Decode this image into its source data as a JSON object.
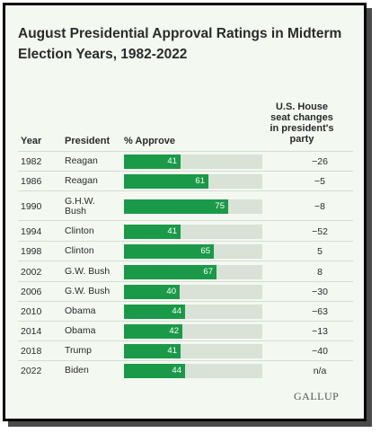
{
  "chart_data": {
    "type": "table",
    "title": "August Presidential Approval Ratings in Midterm Election Years, 1982-2022",
    "columns": [
      "Year",
      "President",
      "% Approve",
      "U.S. House seat changes in president's party"
    ],
    "max_value": 100,
    "rows": [
      {
        "year": "1982",
        "president": "Reagan",
        "approve": 41,
        "seats": "−26"
      },
      {
        "year": "1986",
        "president": "Reagan",
        "approve": 61,
        "seats": "−5"
      },
      {
        "year": "1990",
        "president": "G.H.W. Bush",
        "approve": 75,
        "seats": "−8"
      },
      {
        "year": "1994",
        "president": "Clinton",
        "approve": 41,
        "seats": "−52"
      },
      {
        "year": "1998",
        "president": "Clinton",
        "approve": 65,
        "seats": "5"
      },
      {
        "year": "2002",
        "president": "G.W. Bush",
        "approve": 67,
        "seats": "8"
      },
      {
        "year": "2006",
        "president": "G.W. Bush",
        "approve": 40,
        "seats": "−30"
      },
      {
        "year": "2010",
        "president": "Obama",
        "approve": 44,
        "seats": "−63"
      },
      {
        "year": "2014",
        "president": "Obama",
        "approve": 42,
        "seats": "−13"
      },
      {
        "year": "2018",
        "president": "Trump",
        "approve": 41,
        "seats": "−40"
      },
      {
        "year": "2022",
        "president": "Biden",
        "approve": 44,
        "seats": "n/a"
      }
    ],
    "colors": {
      "bar": "#1a9a48",
      "track": "#d9e2d6"
    }
  },
  "source_logo": "GALLUP"
}
